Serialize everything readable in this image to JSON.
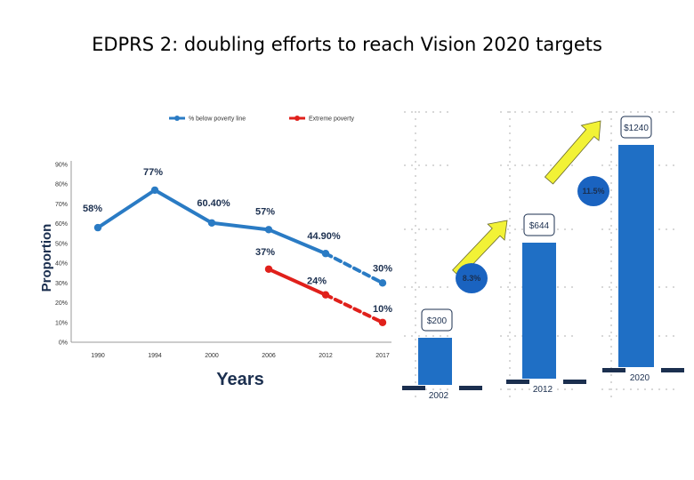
{
  "title": "EDPRS 2: doubling efforts to reach Vision 2020 targets",
  "colors": {
    "poverty": "#2a7bc4",
    "extreme": "#e0201b",
    "bar": "#1f6fc5",
    "arrow": "#f2f236",
    "growth_badge": "#1a63c0"
  },
  "chart_data": [
    {
      "type": "line",
      "title": "",
      "xlabel": "Years",
      "ylabel": "Proportion",
      "ylim": [
        0,
        90
      ],
      "yticks": [
        "0%",
        "10%",
        "20%",
        "30%",
        "40%",
        "50%",
        "60%",
        "70%",
        "80%",
        "90%"
      ],
      "categories": [
        "1990",
        "1994",
        "2000",
        "2006",
        "2012",
        "2017"
      ],
      "series": [
        {
          "name": "% below poverty line",
          "values": [
            58,
            77,
            60.4,
            57,
            44.9,
            30
          ],
          "labels": [
            "58%",
            "77%",
            "60.40%",
            "57%",
            "44.90%",
            "30%"
          ],
          "projected_from": "2012"
        },
        {
          "name": "Extreme poverty",
          "values": [
            null,
            null,
            null,
            37,
            24,
            10
          ],
          "labels": [
            "",
            "",
            "",
            "37%",
            "24%",
            "10%"
          ],
          "projected_from": "2012"
        }
      ]
    },
    {
      "type": "bar",
      "title": "",
      "categories": [
        "2002",
        "2012",
        "2020"
      ],
      "values": [
        200,
        644,
        1240
      ],
      "labels": [
        "$200",
        "$644",
        "$1240"
      ],
      "growth_rates": [
        "8.3%",
        "11.5%"
      ]
    }
  ]
}
